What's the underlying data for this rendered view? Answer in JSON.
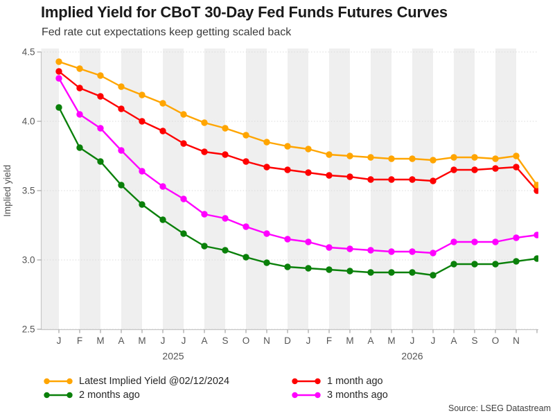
{
  "chart_data": {
    "type": "line",
    "title": "Implied Yield for CBoT 30-Day Fed Funds Futures Curves",
    "subtitle": "Fed rate cut expectations keep getting scaled back",
    "ylabel": "Implied yield",
    "ylim": [
      2.5,
      4.5
    ],
    "ytick_labels": [
      "4.5",
      "4.0",
      "3.5",
      "3.0",
      "2.5"
    ],
    "grid": "horizontal-dotted",
    "background_bands": "alternating-month-gray",
    "x_month_labels": [
      "J",
      "F",
      "M",
      "A",
      "M",
      "J",
      "J",
      "A",
      "S",
      "O",
      "N",
      "D",
      "J",
      "F",
      "M",
      "A",
      "M",
      "J",
      "J",
      "A",
      "S",
      "O",
      "N"
    ],
    "points_per_series": 24,
    "year_labels": [
      {
        "label": "2025",
        "from_index": 0,
        "to_index": 11
      },
      {
        "label": "2026",
        "from_index": 12,
        "to_index": 22
      }
    ],
    "legend_position": "bottom",
    "series": [
      {
        "name": "Latest Implied Yield @02/12/2024",
        "color": "#ffa500",
        "values": [
          4.43,
          4.38,
          4.33,
          4.25,
          4.19,
          4.13,
          4.05,
          3.99,
          3.95,
          3.9,
          3.85,
          3.82,
          3.8,
          3.76,
          3.75,
          3.74,
          3.73,
          3.73,
          3.72,
          3.74,
          3.74,
          3.73,
          3.75,
          3.54
        ]
      },
      {
        "name": "1 month ago",
        "color": "#fe0000",
        "values": [
          4.36,
          4.24,
          4.18,
          4.09,
          4.0,
          3.93,
          3.84,
          3.78,
          3.76,
          3.71,
          3.67,
          3.65,
          3.63,
          3.61,
          3.6,
          3.58,
          3.58,
          3.58,
          3.57,
          3.65,
          3.65,
          3.66,
          3.67,
          3.5
        ]
      },
      {
        "name": "2 months ago",
        "color": "#0a800a",
        "values": [
          4.1,
          3.81,
          3.71,
          3.54,
          3.4,
          3.29,
          3.19,
          3.1,
          3.07,
          3.02,
          2.98,
          2.95,
          2.94,
          2.93,
          2.92,
          2.91,
          2.91,
          2.91,
          2.89,
          2.97,
          2.97,
          2.97,
          2.99,
          3.01
        ]
      },
      {
        "name": "3 months ago",
        "color": "#ff00ff",
        "values": [
          4.31,
          4.05,
          3.95,
          3.79,
          3.64,
          3.53,
          3.44,
          3.33,
          3.3,
          3.24,
          3.19,
          3.15,
          3.13,
          3.09,
          3.08,
          3.07,
          3.06,
          3.06,
          3.05,
          3.13,
          3.13,
          3.13,
          3.16,
          3.18
        ]
      }
    ]
  },
  "source": "Source: LSEG Datastream",
  "style_colors": {
    "band": "#efefef",
    "gridline": "#d9d9d9",
    "spine": "#c6c6c6",
    "tick": "#9c9c9c",
    "tick_text": "#545454"
  }
}
